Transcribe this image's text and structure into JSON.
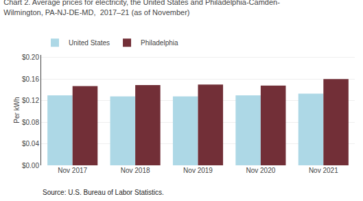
{
  "chart_data": {
    "type": "bar",
    "title": "Chart 2. Average prices for electricity, the United States and Philadelphia-Camden-\nWilmington, PA-NJ-DE-MD,  2017–21 (as of November)",
    "ylabel": "Per kWh",
    "annotations": [
      "Source: U.S. Bureau of Labor Statistics."
    ],
    "categories": [
      "Nov 2017",
      "Nov 2018",
      "Nov 2019",
      "Nov 2020",
      "Nov 2021"
    ],
    "series": [
      {
        "name": "United States",
        "color": "#add8e6",
        "values": [
          0.13,
          0.128,
          0.128,
          0.13,
          0.133
        ]
      },
      {
        "name": "Philadelphia",
        "color": "#722F37",
        "values": [
          0.147,
          0.149,
          0.15,
          0.148,
          0.16
        ]
      }
    ],
    "ylim": [
      0.0,
      0.205
    ],
    "yticks": [
      {
        "value": 0.0,
        "label": "$0.00"
      },
      {
        "value": 0.04,
        "label": "$0.04"
      },
      {
        "value": 0.08,
        "label": "$0.08"
      },
      {
        "value": 0.12,
        "label": "$0.12"
      },
      {
        "value": 0.16,
        "label": "$0.16"
      },
      {
        "value": 0.2,
        "label": "$0.20"
      }
    ],
    "grid": true,
    "legend": "top left"
  }
}
